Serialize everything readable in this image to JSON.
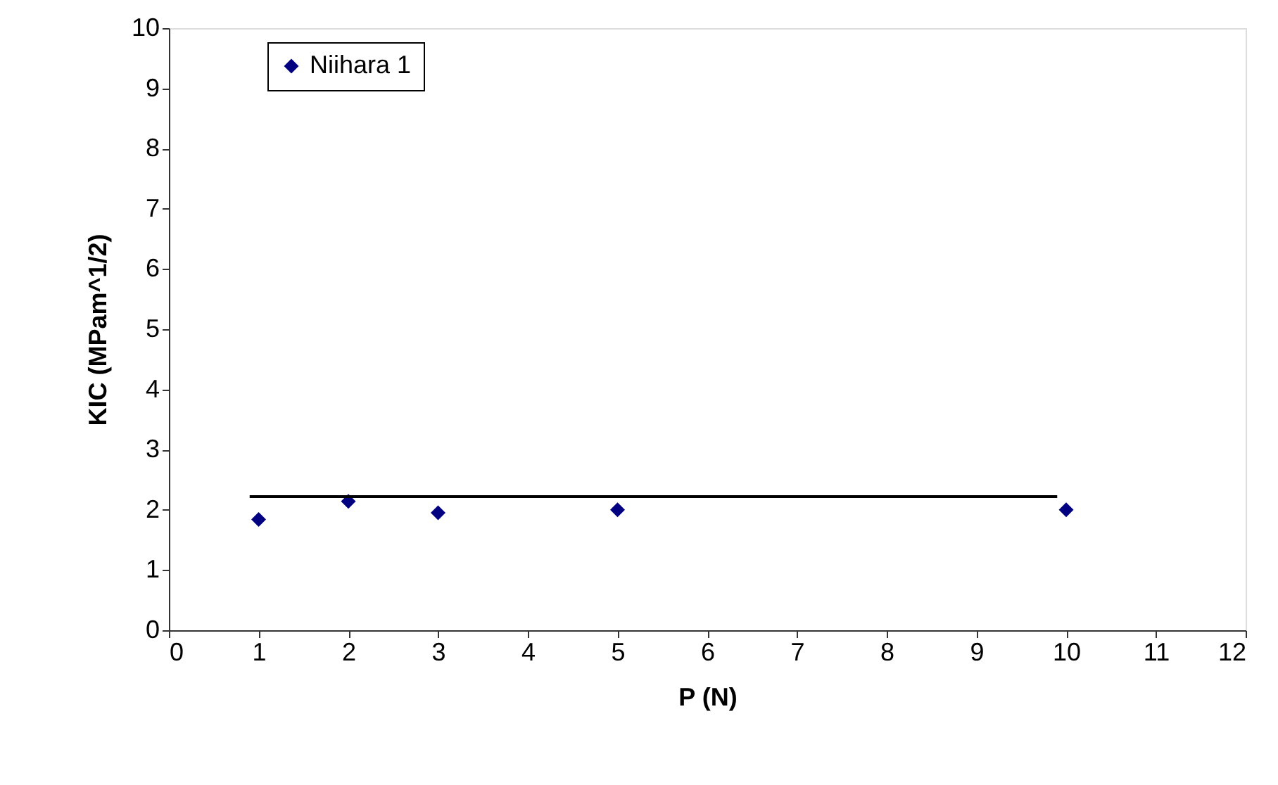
{
  "chart_data": {
    "type": "scatter",
    "xlabel": "P (N)",
    "ylabel": "KIC (MPam^1/2)",
    "xlim": [
      0,
      12
    ],
    "xticks": [
      0,
      1,
      2,
      3,
      4,
      5,
      6,
      7,
      8,
      9,
      10,
      11,
      12
    ],
    "ylim": [
      0,
      10
    ],
    "yticks": [
      0,
      1,
      2,
      3,
      4,
      5,
      6,
      7,
      8,
      9,
      10
    ],
    "grid": false,
    "legend": "top left",
    "marker": "diamond",
    "series": [
      {
        "name": "Niihara 1",
        "color": "#000080",
        "x": [
          1,
          2,
          3,
          5,
          10
        ],
        "values": [
          1.84,
          2.14,
          1.95,
          2.0,
          2.0
        ]
      },
      {
        "type": "line",
        "color": "#000000",
        "line_style": "solid",
        "marker": "none",
        "x": [
          0.9,
          9.9
        ],
        "values": [
          2.22,
          2.22
        ]
      }
    ]
  }
}
